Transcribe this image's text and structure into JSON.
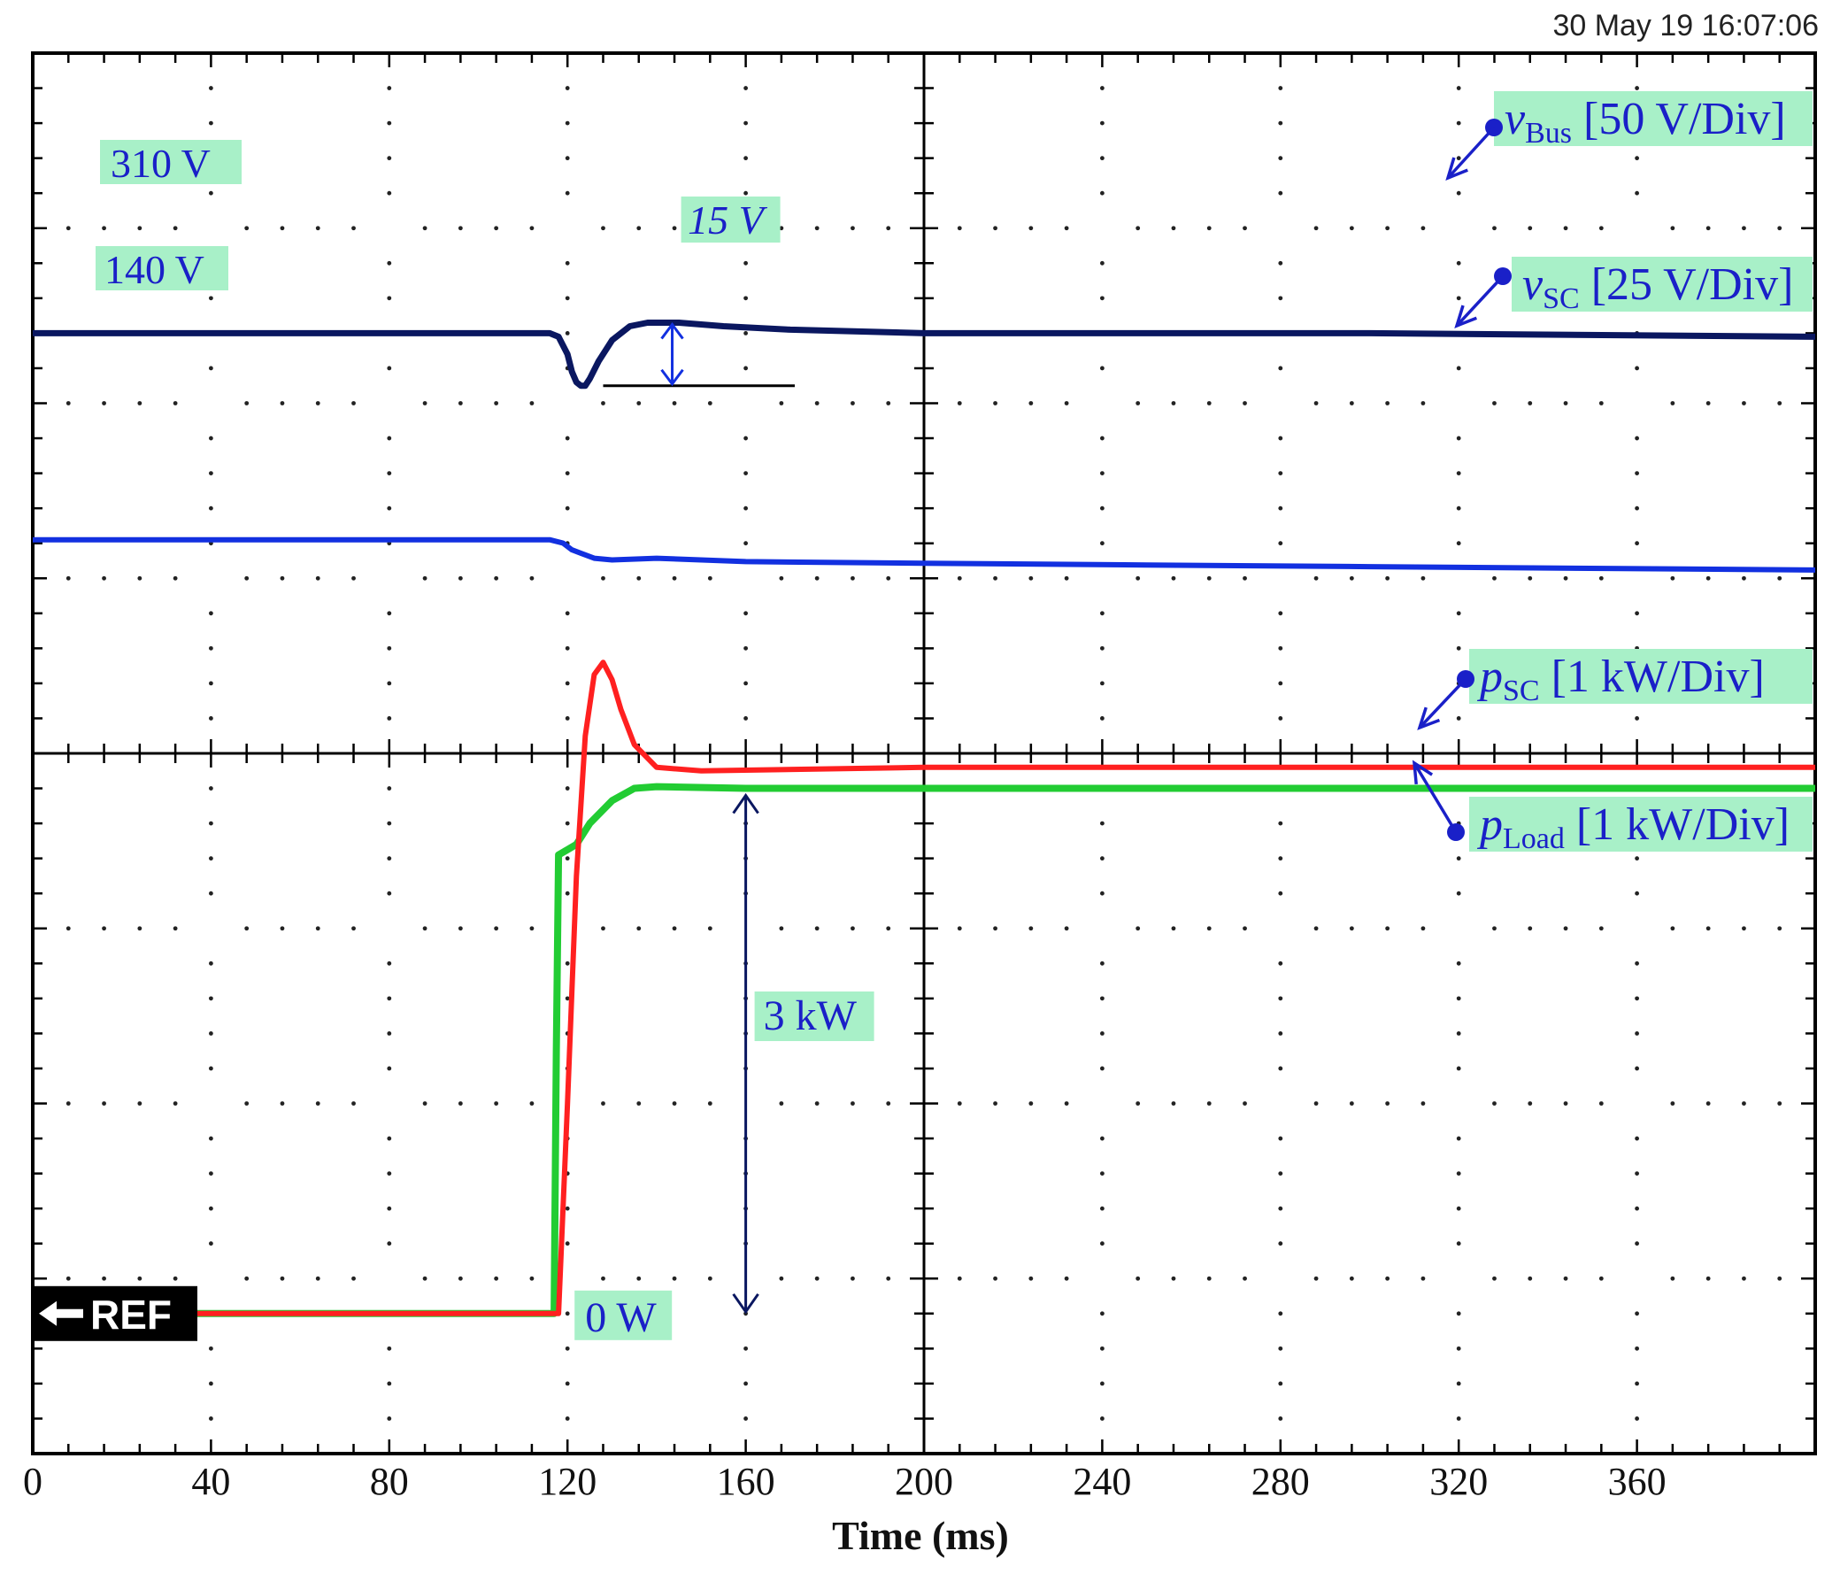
{
  "timestamp": "30 May 19  16:07:06",
  "colors": {
    "v_bus": "#0a1760",
    "v_sc": "#1230e0",
    "p_sc": "#ff2020",
    "p_load": "#22cc33",
    "label_bg": "#a8f0c8",
    "label_text": "#1a20c8",
    "annot_text": "#1a20c8"
  },
  "chart_data": {
    "type": "line",
    "xlabel": "Time (ms)",
    "xlim": [
      0,
      400
    ],
    "x_ticks": [
      0,
      40,
      80,
      120,
      160,
      200,
      240,
      280,
      320,
      360
    ],
    "ylim_divisions": [
      0,
      8
    ],
    "grid": true,
    "series": [
      {
        "name": "vBus [50 V/Div]",
        "name_main": "v",
        "name_sub": "Bus",
        "name_rest": " [50 V/Div]",
        "unit": "V",
        "points": [
          [
            0,
            310
          ],
          [
            116,
            310
          ],
          [
            118,
            309
          ],
          [
            120,
            304
          ],
          [
            121,
            299
          ],
          [
            122,
            296
          ],
          [
            123,
            295
          ],
          [
            124,
            295
          ],
          [
            125,
            297
          ],
          [
            127,
            302
          ],
          [
            130,
            308
          ],
          [
            134,
            312
          ],
          [
            138,
            313
          ],
          [
            145,
            313
          ],
          [
            155,
            312
          ],
          [
            170,
            311
          ],
          [
            200,
            310
          ],
          [
            250,
            310
          ],
          [
            300,
            310
          ],
          [
            400,
            309
          ]
        ]
      },
      {
        "name": "vSC [25 V/Div]",
        "name_main": "v",
        "name_sub": "SC",
        "name_rest": " [25 V/Div]",
        "unit": "V",
        "points": [
          [
            0,
            140
          ],
          [
            116,
            140
          ],
          [
            119,
            139
          ],
          [
            121,
            137
          ],
          [
            123,
            136
          ],
          [
            126,
            134.5
          ],
          [
            130,
            134
          ],
          [
            140,
            134.5
          ],
          [
            160,
            133.5
          ],
          [
            200,
            133
          ],
          [
            250,
            132.5
          ],
          [
            300,
            132
          ],
          [
            400,
            131
          ]
        ]
      },
      {
        "name": "pSC [1 kW/Div]",
        "name_main": "p",
        "name_sub": "SC",
        "name_rest": " [1 kW/Div]",
        "unit": "W",
        "points": [
          [
            0,
            0
          ],
          [
            118,
            0
          ],
          [
            120,
            1200
          ],
          [
            122,
            2500
          ],
          [
            124,
            3300
          ],
          [
            126,
            3650
          ],
          [
            128,
            3720
          ],
          [
            130,
            3620
          ],
          [
            132,
            3450
          ],
          [
            135,
            3250
          ],
          [
            140,
            3120
          ],
          [
            150,
            3100
          ],
          [
            200,
            3120
          ],
          [
            300,
            3120
          ],
          [
            400,
            3120
          ]
        ]
      },
      {
        "name": "pLoad [1 kW/Div]",
        "name_main": "p",
        "name_sub": "Load",
        "name_rest": " [1 kW/Div]",
        "unit": "W",
        "points": [
          [
            0,
            0
          ],
          [
            117,
            0
          ],
          [
            117.5,
            1500
          ],
          [
            118,
            2620
          ],
          [
            120,
            2650
          ],
          [
            122,
            2680
          ],
          [
            125,
            2800
          ],
          [
            130,
            2930
          ],
          [
            135,
            3000
          ],
          [
            140,
            3010
          ],
          [
            160,
            3000
          ],
          [
            200,
            3000
          ],
          [
            300,
            3000
          ],
          [
            400,
            3000
          ]
        ]
      }
    ],
    "annotations": {
      "vbus_level": "310 V",
      "vsc_level": "140 V",
      "dip": "15 V",
      "power_step": "3 kW",
      "zero_level": "0 W",
      "ref_marker": "REF"
    }
  }
}
